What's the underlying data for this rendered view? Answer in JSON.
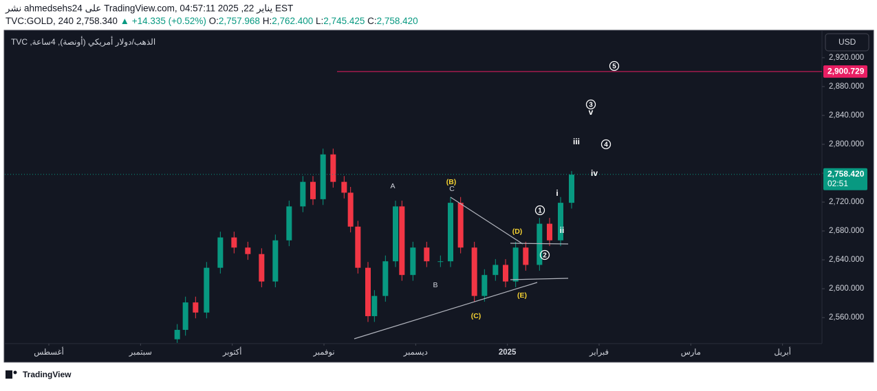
{
  "header": {
    "published": "نشر ahmedsehs24 على TradingView.com, يناير 22, 2025 04:57:11 EST",
    "symbol": "TVC:GOLD, 240",
    "price": "2,758.340",
    "change": "▲ +14.335 (+0.52%)",
    "o_label": "O:",
    "o": "2,757.968",
    "h_label": "H:",
    "h": "2,762.400",
    "l_label": "L:",
    "l": "2,745.425",
    "c_label": "C:",
    "c": "2,758.420"
  },
  "legend": "TVC ,الذهب/دولار أمريكي (أونصة), 4ساعة",
  "currency": "USD",
  "brand": "TradingView",
  "chart_data": {
    "type": "candlestick",
    "up_color": "#089981",
    "down_color": "#f23645",
    "xlim": [
      -0.48,
      8.43
    ],
    "xticks": [
      {
        "value": 0,
        "label": "أغسطس"
      },
      {
        "value": 1,
        "label": "سبتمبر"
      },
      {
        "value": 2,
        "label": "أكتوبر"
      },
      {
        "value": 3,
        "label": "نوفمبر"
      },
      {
        "value": 4,
        "label": "ديسمبر"
      },
      {
        "value": 5,
        "label": "2025"
      },
      {
        "value": 6,
        "label": "فبراير"
      },
      {
        "value": 7,
        "label": "مارس"
      },
      {
        "value": 8,
        "label": "أبريل"
      }
    ],
    "ylim": [
      2524,
      2958
    ],
    "yticks": [
      {
        "value": 2560,
        "label": "2,560.000"
      },
      {
        "value": 2600,
        "label": "2,600.000"
      },
      {
        "value": 2640,
        "label": "2,640.000"
      },
      {
        "value": 2680,
        "label": "2,680.000"
      },
      {
        "value": 2720,
        "label": "2,720.000"
      },
      {
        "value": 2760,
        "label": "2,760.000"
      },
      {
        "value": 2800,
        "label": "2,800.000"
      },
      {
        "value": 2840,
        "label": "2,840.000"
      },
      {
        "value": 2880,
        "label": "2,880.000"
      },
      {
        "value": 2920,
        "label": "2,920.000"
      }
    ],
    "x": [
      1.4,
      1.49,
      1.6,
      1.72,
      1.87,
      2.02,
      2.17,
      2.32,
      2.47,
      2.62,
      2.77,
      2.88,
      2.99,
      3.1,
      3.22,
      3.29,
      3.37,
      3.48,
      3.55,
      3.67,
      3.78,
      3.85,
      3.97,
      4.12,
      4.27,
      4.38,
      4.49,
      4.64,
      4.75,
      4.87,
      4.98,
      5.09,
      5.2,
      5.35,
      5.46,
      5.58,
      5.7
    ],
    "open": [
      2530,
      2543,
      2581,
      2567,
      2629,
      2671,
      2657,
      2648,
      2610,
      2667,
      2714,
      2748,
      2724,
      2786,
      2748,
      2733,
      2686,
      2629,
      2562,
      2590,
      2638,
      2714,
      2619,
      2657,
      2638,
      2638,
      2719,
      2657,
      2590,
      2619,
      2633,
      2610,
      2657,
      2633,
      2690,
      2667,
      2719
    ],
    "high": [
      2551,
      2589,
      2589,
      2637,
      2679,
      2679,
      2665,
      2656,
      2675,
      2722,
      2756,
      2756,
      2794,
      2794,
      2756,
      2741,
      2694,
      2637,
      2598,
      2646,
      2722,
      2722,
      2665,
      2665,
      2646,
      2727,
      2727,
      2665,
      2627,
      2641,
      2641,
      2665,
      2665,
      2698,
      2698,
      2727,
      2763
    ],
    "low": [
      2525,
      2535,
      2559,
      2559,
      2621,
      2649,
      2640,
      2602,
      2602,
      2659,
      2706,
      2716,
      2716,
      2740,
      2725,
      2678,
      2621,
      2554,
      2554,
      2582,
      2630,
      2611,
      2611,
      2630,
      2630,
      2630,
      2649,
      2582,
      2582,
      2611,
      2602,
      2602,
      2625,
      2625,
      2659,
      2659,
      2711
    ],
    "close": [
      2543,
      2581,
      2567,
      2629,
      2671,
      2657,
      2648,
      2610,
      2667,
      2714,
      2748,
      2724,
      2786,
      2748,
      2733,
      2686,
      2629,
      2562,
      2590,
      2638,
      2714,
      2619,
      2657,
      2638,
      2638,
      2719,
      2657,
      2590,
      2619,
      2633,
      2610,
      2657,
      2633,
      2690,
      2667,
      2719,
      2758
    ],
    "target_price": 2900.729,
    "target_label": "2,900.729",
    "target_color": "#e91e63",
    "last_price": 2758.42,
    "last_price_label": "2,758.420",
    "countdown": "02:51",
    "annotations": [
      "A",
      "C",
      "(B)",
      "B",
      "(C)",
      "(D)",
      "(E)",
      "1",
      "2",
      "3",
      "4",
      "5",
      "i",
      "ii",
      "iii",
      "iv",
      "v"
    ]
  }
}
